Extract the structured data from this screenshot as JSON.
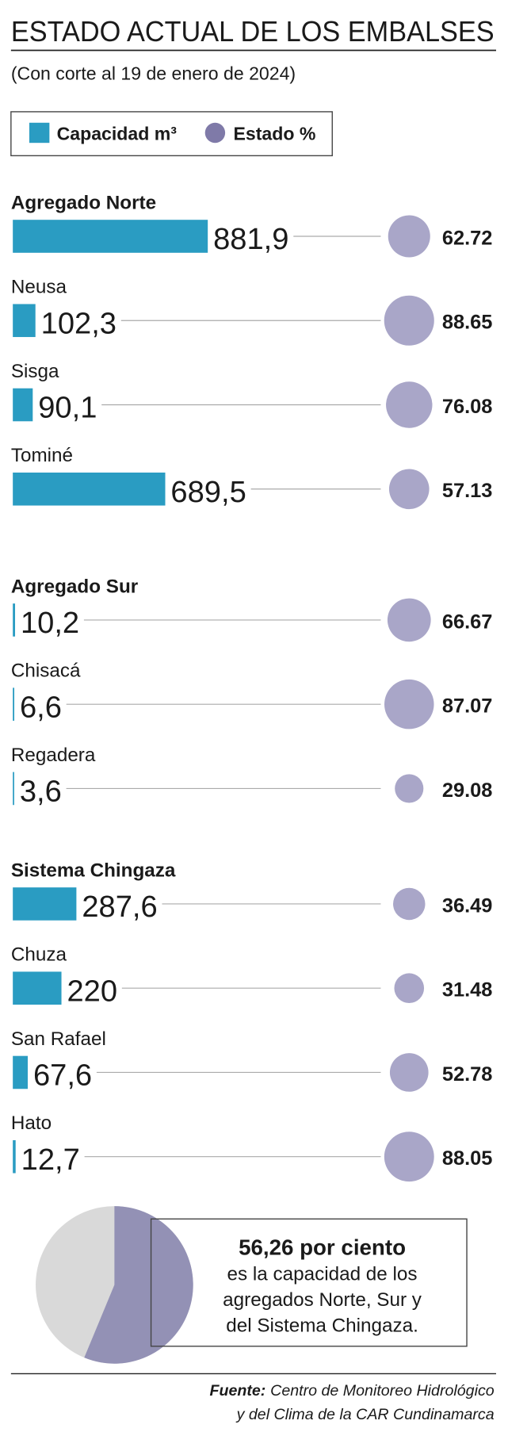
{
  "chart_data": {
    "type": "bar-bubble",
    "title": "ESTADO ACTUAL DE LOS EMBALSES",
    "subtitle": "(Con corte al 19 de enero de 2024)",
    "legend": [
      {
        "name": "Capacidad m³",
        "color": "#2a9cc2"
      },
      {
        "name": "Estado %",
        "color": "#7f7aa8"
      }
    ],
    "bar_color": "#2a9cc2",
    "bubble_color": "#a9a6c8",
    "groups": [
      {
        "categories": [
          "Agregado Norte",
          "Neusa",
          "Sisga",
          "Tominé"
        ],
        "capacity": [
          881.9,
          102.3,
          90.1,
          689.5
        ],
        "capacity_labels": [
          "881,9",
          "102,3",
          "90,1",
          "689,5"
        ],
        "estado": [
          62.72,
          88.65,
          76.08,
          57.13
        ]
      },
      {
        "categories": [
          "Agregado Sur",
          "Chisacá",
          "Regadera"
        ],
        "capacity": [
          10.2,
          6.6,
          3.6
        ],
        "capacity_labels": [
          "10,2",
          "6,6",
          "3,6"
        ],
        "estado": [
          66.67,
          87.07,
          29.08
        ]
      },
      {
        "categories": [
          "Sistema Chingaza",
          "Chuza",
          "San Rafael",
          "Hato"
        ],
        "capacity": [
          287.6,
          220,
          67.6,
          12.7
        ],
        "capacity_labels": [
          "287,6",
          "220",
          "67,6",
          "12,7"
        ],
        "estado": [
          36.49,
          31.48,
          52.78,
          88.05
        ]
      }
    ],
    "summary": {
      "type": "pie",
      "value": 56.26,
      "value_label": "56,26 por ciento",
      "color": "#9391b5",
      "rest_color": "#d9d9d9",
      "lines": [
        "es la capacidad de los",
        "agregados Norte, Sur y",
        "del Sistema Chingaza."
      ]
    },
    "source": {
      "label": "Fuente:",
      "lines": [
        "Centro de Monitoreo Hidrológico",
        "y del Clima de la CAR Cundinamarca"
      ]
    }
  }
}
